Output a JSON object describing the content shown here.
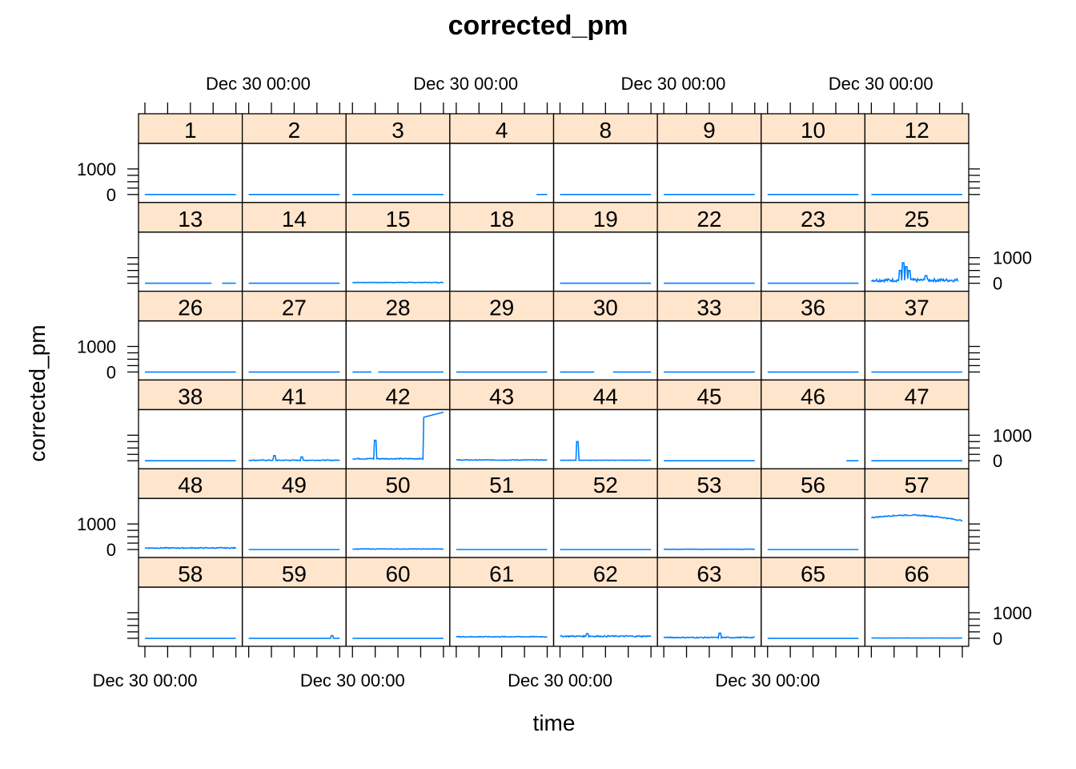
{
  "chart_data": {
    "type": "line",
    "title": "corrected_pm",
    "xlabel": "time",
    "ylabel": "corrected_pm",
    "x_tick_label": "Dec 30 00:00",
    "y_tick_labels": [
      "0",
      "1000"
    ],
    "ylim": [
      0,
      2000
    ],
    "panel_layout": {
      "columns": 8,
      "rows": 6
    },
    "line_color": "#0080ff",
    "strip_color": "#ffe5cc",
    "panels": [
      {
        "label": "1",
        "level": 0
      },
      {
        "label": "2",
        "level": 0
      },
      {
        "label": "3",
        "level": 0
      },
      {
        "label": "4",
        "level": 0,
        "start": 0.88
      },
      {
        "label": "8",
        "level": 0
      },
      {
        "label": "9",
        "level": 0
      },
      {
        "label": "10",
        "level": 0
      },
      {
        "label": "12",
        "level": 0
      },
      {
        "label": "13",
        "level": 0,
        "gap": [
          0.74,
          0.85
        ]
      },
      {
        "label": "14",
        "level": 0
      },
      {
        "label": "15",
        "level": 30,
        "noise": 20
      },
      {
        "label": "18",
        "level": null
      },
      {
        "label": "19",
        "level": 0
      },
      {
        "label": "22",
        "level": 0
      },
      {
        "label": "23",
        "level": 0
      },
      {
        "label": "25",
        "level": 120,
        "noise": 120,
        "spikes": [
          [
            0.35,
            800
          ],
          [
            0.32,
            500
          ],
          [
            0.38,
            650
          ],
          [
            0.42,
            500
          ],
          [
            0.6,
            300
          ]
        ],
        "end": 0.95
      },
      {
        "label": "26",
        "level": 0
      },
      {
        "label": "27",
        "level": 0
      },
      {
        "label": "28",
        "level": 0,
        "gap": [
          0.21,
          0.28
        ]
      },
      {
        "label": "29",
        "level": 0
      },
      {
        "label": "30",
        "level": 0,
        "gap": [
          0.38,
          0.58
        ]
      },
      {
        "label": "33",
        "level": 0
      },
      {
        "label": "36",
        "level": 0
      },
      {
        "label": "37",
        "level": 0
      },
      {
        "label": "38",
        "level": 0
      },
      {
        "label": "41",
        "level": 20,
        "noise": 30,
        "spikes": [
          [
            0.28,
            200
          ],
          [
            0.58,
            150
          ]
        ]
      },
      {
        "label": "42",
        "level": 80,
        "noise": 40,
        "spikes": [
          [
            0.25,
            800
          ]
        ],
        "step": [
          0.78,
          1700,
          1900
        ]
      },
      {
        "label": "43",
        "level": 30,
        "noise": 30
      },
      {
        "label": "44",
        "level": 20,
        "noise": 10,
        "spikes": [
          [
            0.19,
            750
          ]
        ]
      },
      {
        "label": "45",
        "level": 0
      },
      {
        "label": "46",
        "level": 0,
        "start": 0.86
      },
      {
        "label": "47",
        "level": 0
      },
      {
        "label": "48",
        "level": 60,
        "noise": 40
      },
      {
        "label": "49",
        "level": 0
      },
      {
        "label": "50",
        "level": 20,
        "noise": 20
      },
      {
        "label": "51",
        "level": 0
      },
      {
        "label": "52",
        "level": 0
      },
      {
        "label": "53",
        "level": 10,
        "noise": 10
      },
      {
        "label": "56",
        "level": 0
      },
      {
        "label": "57",
        "level": 1250,
        "noise": 40,
        "arc": 150
      },
      {
        "label": "58",
        "level": 0
      },
      {
        "label": "59",
        "level": 0,
        "spikes": [
          [
            0.92,
            100
          ]
        ]
      },
      {
        "label": "60",
        "level": 0
      },
      {
        "label": "61",
        "level": 60,
        "noise": 30
      },
      {
        "label": "62",
        "level": 80,
        "noise": 50,
        "spikes": [
          [
            0.3,
            180
          ]
        ]
      },
      {
        "label": "63",
        "level": 30,
        "noise": 40,
        "spikes": [
          [
            0.62,
            200
          ]
        ]
      },
      {
        "label": "65",
        "level": 0
      },
      {
        "label": "66",
        "level": 10,
        "noise": 10
      }
    ]
  }
}
